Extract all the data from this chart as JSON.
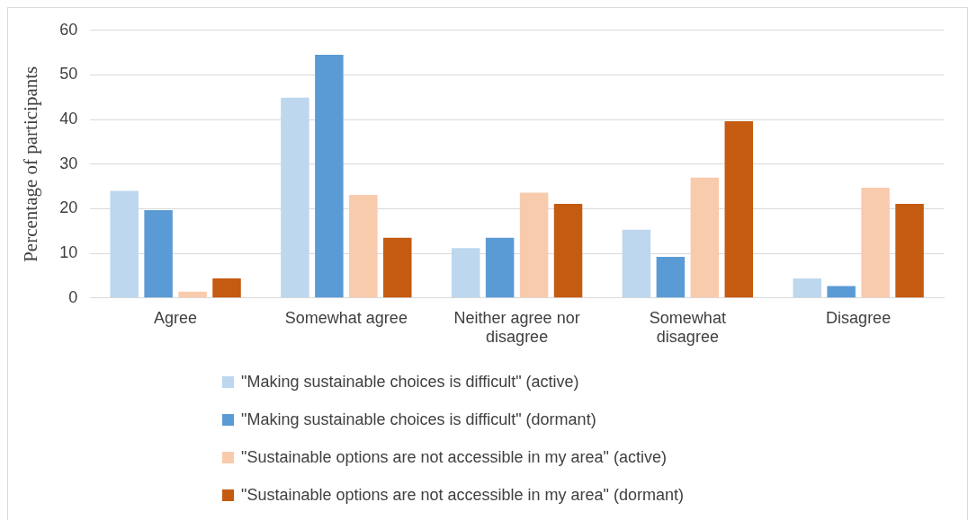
{
  "chart_data": {
    "type": "bar",
    "ylabel": "Percentage of participants",
    "categories": [
      "Agree",
      "Somewhat agree",
      "Neither agree nor disagree",
      "Somewhat disagree",
      "Disagree"
    ],
    "ylim": [
      0,
      60
    ],
    "yticks": [
      0,
      10,
      20,
      30,
      40,
      50,
      60
    ],
    "grid": "y",
    "legend": "bottom",
    "series": [
      {
        "name": "\"Making sustainable choices is difficult\" (active)",
        "color": "#bdd7ee",
        "values": [
          24.0,
          44.9,
          11.2,
          15.3,
          4.4
        ]
      },
      {
        "name": "\"Making sustainable choices is difficult\" (dormant)",
        "color": "#5b9bd5",
        "values": [
          19.7,
          54.5,
          13.5,
          9.2,
          2.7
        ]
      },
      {
        "name": "\"Sustainable options are not accessible in my area\" (active)",
        "color": "#f8cbad",
        "values": [
          1.4,
          23.1,
          23.6,
          27.0,
          24.7
        ]
      },
      {
        "name": "\"Sustainable options are not accessible in my area\" (dormant)",
        "color": "#c55a11",
        "values": [
          4.4,
          13.5,
          21.1,
          39.6,
          21.1
        ]
      }
    ]
  }
}
